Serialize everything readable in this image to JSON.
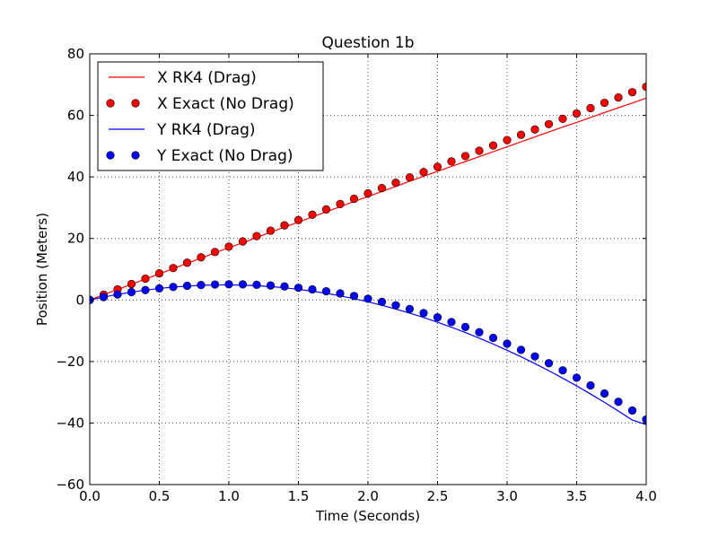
{
  "chart_data": {
    "type": "line",
    "title": "Question 1b",
    "xlabel": "Time (Seconds)",
    "ylabel": "Position (Meters)",
    "xlim": [
      0.0,
      4.0
    ],
    "ylim": [
      -60,
      80
    ],
    "grid": true,
    "legend_position": "top-left",
    "x_ticks": [
      0.0,
      0.5,
      1.0,
      1.5,
      2.0,
      2.5,
      3.0,
      3.5,
      4.0
    ],
    "x_tick_labels": [
      "0.0",
      "0.5",
      "1.0",
      "1.5",
      "2.0",
      "2.5",
      "3.0",
      "3.5",
      "4.0"
    ],
    "y_ticks": [
      -60,
      -40,
      -20,
      0,
      20,
      40,
      60,
      80
    ],
    "y_tick_labels": [
      "−60",
      "−40",
      "−20",
      "0",
      "20",
      "40",
      "60",
      "80"
    ],
    "x": [
      0.0,
      0.1,
      0.2,
      0.3,
      0.4,
      0.5,
      0.6,
      0.7,
      0.8,
      0.9,
      1.0,
      1.1,
      1.2,
      1.3,
      1.4,
      1.5,
      1.6,
      1.7,
      1.8,
      1.9,
      2.0,
      2.1,
      2.2,
      2.3,
      2.4,
      2.5,
      2.6,
      2.7,
      2.8,
      2.9,
      3.0,
      3.1,
      3.2,
      3.3,
      3.4,
      3.5,
      3.6,
      3.7,
      3.8,
      3.9,
      4.0
    ],
    "series": [
      {
        "name": "X RK4 (Drag)",
        "style": "line",
        "color": "#ff0000",
        "values": [
          0.0,
          1.7,
          3.4,
          5.1,
          6.8,
          8.5,
          10.2,
          11.9,
          13.6,
          15.3,
          17.0,
          18.6,
          20.3,
          22.0,
          23.7,
          25.3,
          27.0,
          28.7,
          30.3,
          32.0,
          33.6,
          35.3,
          36.9,
          38.6,
          40.2,
          41.8,
          43.4,
          45.0,
          46.6,
          48.2,
          49.8,
          51.4,
          53.0,
          54.6,
          56.2,
          57.7,
          59.3,
          60.9,
          62.5,
          64.0,
          65.6
        ]
      },
      {
        "name": "X Exact (No Drag)",
        "style": "markers",
        "color": "#ff0000",
        "values": [
          0.0,
          1.73,
          3.46,
          5.2,
          6.93,
          8.66,
          10.39,
          12.12,
          13.86,
          15.59,
          17.32,
          19.05,
          20.78,
          22.52,
          24.25,
          25.98,
          27.71,
          29.44,
          31.18,
          32.91,
          34.64,
          36.37,
          38.1,
          39.84,
          41.57,
          43.3,
          45.03,
          46.77,
          48.5,
          50.23,
          51.96,
          53.69,
          55.43,
          57.16,
          58.89,
          60.62,
          62.35,
          64.09,
          65.82,
          67.55,
          69.28
        ]
      },
      {
        "name": "Y RK4 (Drag)",
        "style": "line",
        "color": "#0000ff",
        "values": [
          0.0,
          0.95,
          1.8,
          2.55,
          3.2,
          3.74,
          4.18,
          4.52,
          4.75,
          4.88,
          4.9,
          4.82,
          4.64,
          4.35,
          3.96,
          3.46,
          2.86,
          2.16,
          1.35,
          0.43,
          -0.6,
          -1.72,
          -2.95,
          -4.27,
          -5.7,
          -7.22,
          -8.85,
          -10.57,
          -12.4,
          -14.32,
          -16.34,
          -18.46,
          -20.68,
          -23.0,
          -25.42,
          -27.94,
          -30.56,
          -33.28,
          -36.1,
          -39.02,
          -40.5
        ]
      },
      {
        "name": "Y Exact (No Drag)",
        "style": "markers",
        "color": "#0000ff",
        "values": [
          0.0,
          0.95,
          1.8,
          2.56,
          3.22,
          3.77,
          4.24,
          4.6,
          4.86,
          5.03,
          5.1,
          5.07,
          4.94,
          4.72,
          4.4,
          3.97,
          3.45,
          2.84,
          2.12,
          1.31,
          0.4,
          -0.61,
          -1.72,
          -2.93,
          -4.24,
          -5.65,
          -7.16,
          -8.78,
          -10.49,
          -12.3,
          -14.21,
          -16.22,
          -18.34,
          -20.55,
          -22.86,
          -25.27,
          -27.78,
          -30.39,
          -33.1,
          -35.92,
          -38.83
        ]
      }
    ]
  }
}
